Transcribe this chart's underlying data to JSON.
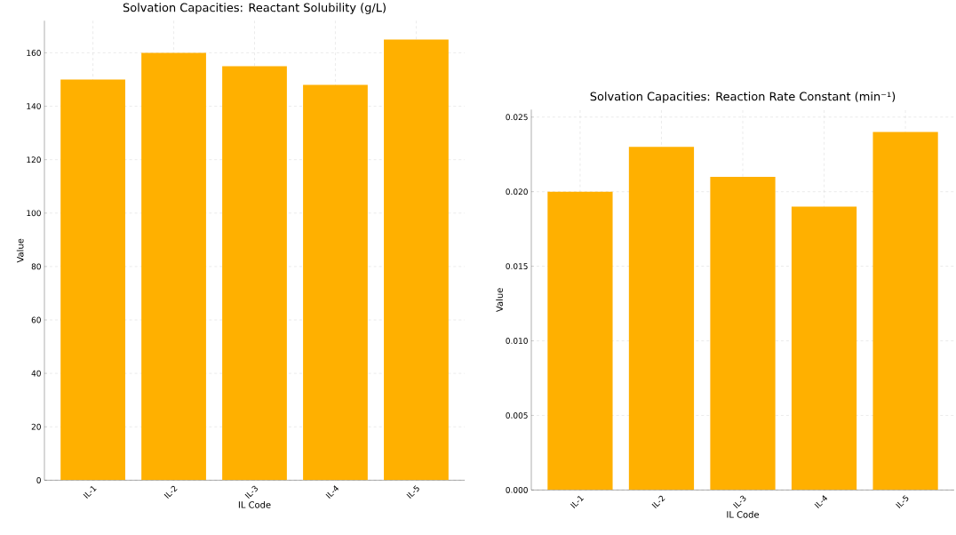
{
  "chart_data": [
    {
      "type": "bar",
      "title": "Solvation Capacities: Reactant Solubility (g/L)",
      "xlabel": "IL Code",
      "ylabel": "Value",
      "categories": [
        "IL-1",
        "IL-2",
        "IL-3",
        "IL-4",
        "IL-5"
      ],
      "values": [
        150,
        160,
        155,
        148,
        165
      ],
      "color": "#ffb000",
      "ylim": [
        0,
        172
      ],
      "yticks": [
        0,
        20,
        40,
        60,
        80,
        100,
        120,
        140,
        160
      ],
      "grid": true
    },
    {
      "type": "bar",
      "title": "Solvation Capacities: Reaction Rate Constant (min⁻¹)",
      "xlabel": "IL Code",
      "ylabel": "Value",
      "categories": [
        "IL-1",
        "IL-2",
        "IL-3",
        "IL-4",
        "IL-5"
      ],
      "values": [
        0.02,
        0.023,
        0.021,
        0.019,
        0.024
      ],
      "color": "#ffb000",
      "ylim": [
        0,
        0.0255
      ],
      "yticks": [
        {
          "value": 0,
          "label": "0.000"
        },
        {
          "value": 0.005,
          "label": "0.005"
        },
        {
          "value": 0.01,
          "label": "0.010"
        },
        {
          "value": 0.015,
          "label": "0.015"
        },
        {
          "value": 0.02,
          "label": "0.020"
        },
        {
          "value": 0.025,
          "label": "0.025"
        }
      ],
      "grid": true
    }
  ]
}
